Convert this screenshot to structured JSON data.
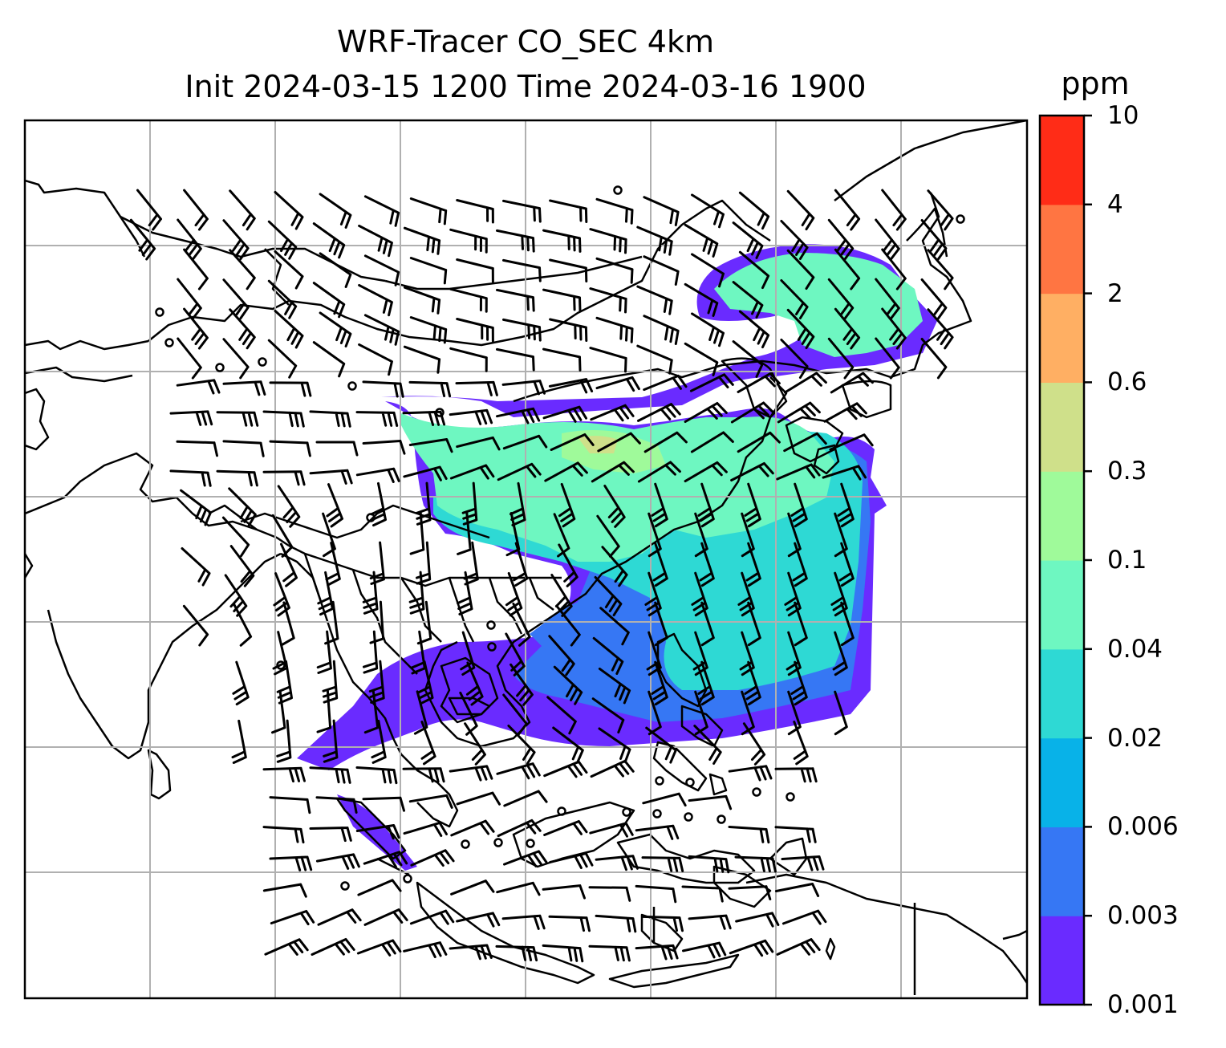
{
  "title": {
    "line1": "WRF-Tracer CO_SEC 4km",
    "line2": "Init 2024-03-15 1200 Time 2024-03-16 1900"
  },
  "colorbar": {
    "unit": "ppm",
    "ticks": [
      "0.001",
      "0.003",
      "0.006",
      "0.02",
      "0.04",
      "0.1",
      "0.3",
      "0.6",
      "2",
      "4",
      "10"
    ],
    "colors": [
      "#6a2bff",
      "#3677f4",
      "#08b2e8",
      "#2ed9d4",
      "#6ef7c1",
      "#9ffa9a",
      "#cfe08a",
      "#ffaf63",
      "#ff7542",
      "#ff2c17"
    ]
  },
  "map": {
    "features": [
      "coastlines",
      "country-borders",
      "lat-lon-gridlines",
      "tracer-concentration",
      "wind-barbs"
    ],
    "colors": {
      "coast": "#000000",
      "grid": "#b0b0b0",
      "frame": "#000000"
    }
  }
}
